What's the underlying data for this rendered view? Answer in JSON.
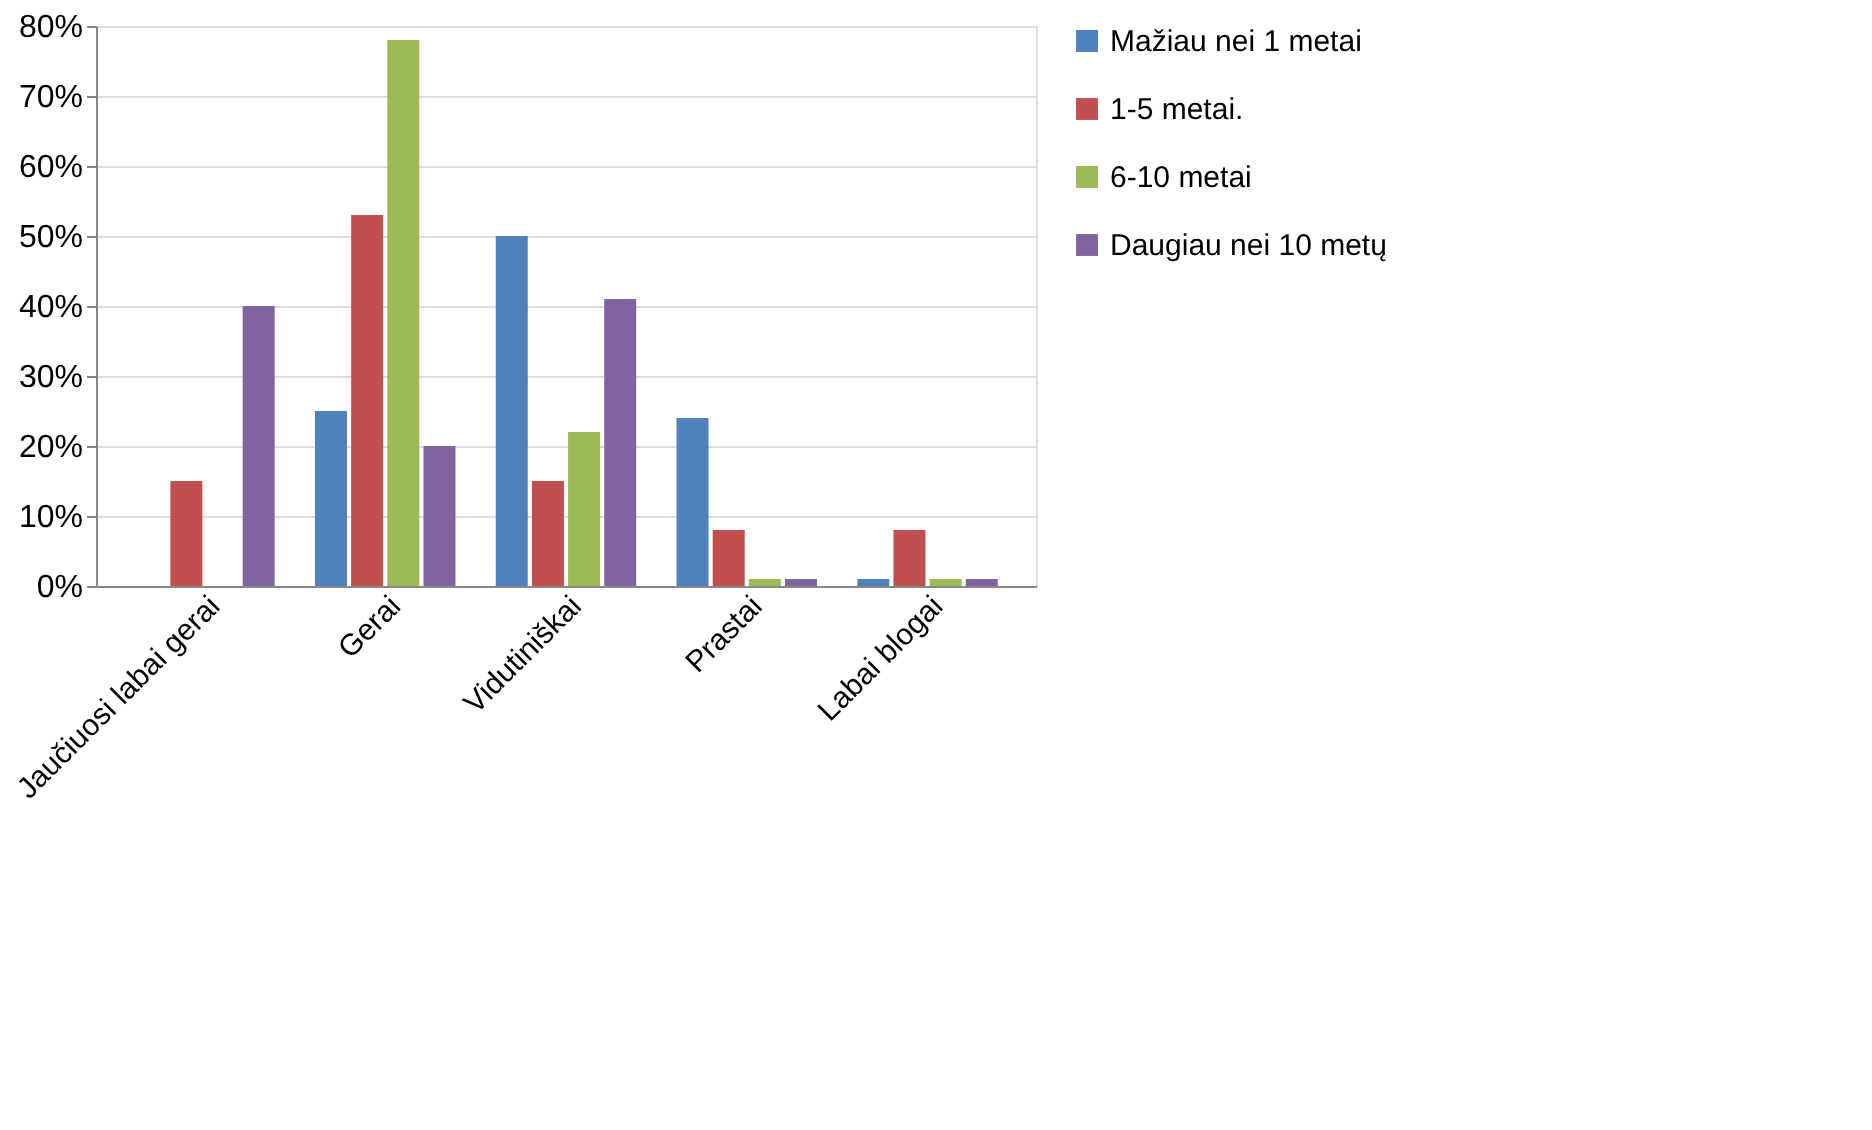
{
  "chart_data": {
    "type": "bar",
    "categories": [
      "Jaučiuosi labai gerai",
      "Gerai",
      "Vidutiniškai",
      "Prastai",
      "Labai blogai"
    ],
    "series": [
      {
        "name": "Mažiau nei 1 metai",
        "color": "#4f81bd",
        "values": [
          0,
          25,
          50,
          24,
          1
        ]
      },
      {
        "name": "1-5 metai.",
        "color": "#c0504d",
        "values": [
          15,
          53,
          15,
          8,
          8
        ]
      },
      {
        "name": "6-10 metai",
        "color": "#9bbb59",
        "values": [
          0,
          78,
          22,
          1,
          1
        ]
      },
      {
        "name": "Daugiau nei 10 metų",
        "color": "#8064a2",
        "values": [
          40,
          20,
          41,
          1,
          1
        ]
      }
    ],
    "ylim": [
      0,
      80
    ],
    "yticks": [
      {
        "value": 0,
        "label": "0%"
      },
      {
        "value": 10,
        "label": "10%"
      },
      {
        "value": 20,
        "label": "20%"
      },
      {
        "value": 30,
        "label": "30%"
      },
      {
        "value": 40,
        "label": "40%"
      },
      {
        "value": 50,
        "label": "50%"
      },
      {
        "value": 60,
        "label": "60%"
      },
      {
        "value": 70,
        "label": "70%"
      },
      {
        "value": 80,
        "label": "80%"
      }
    ],
    "grid": "y",
    "legend": "right"
  }
}
